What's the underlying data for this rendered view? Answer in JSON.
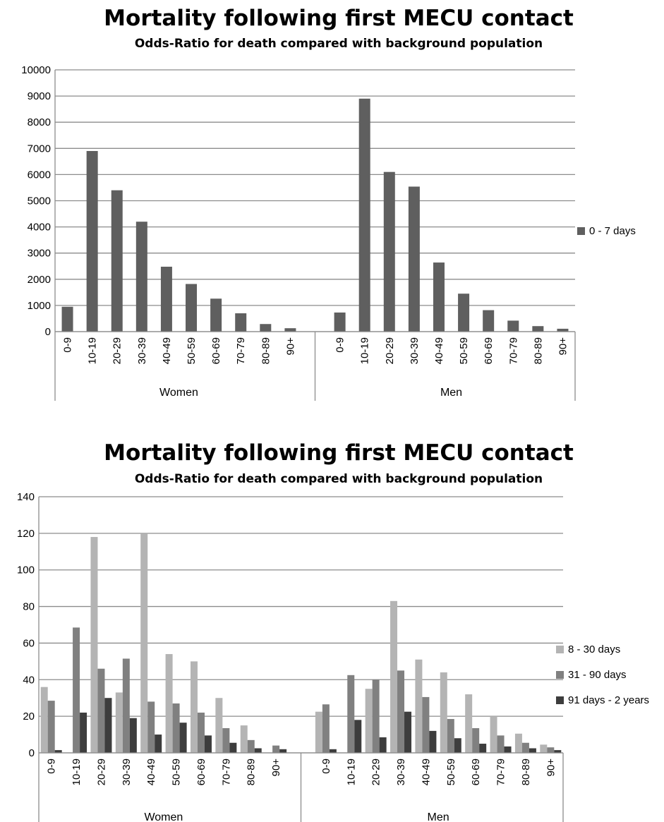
{
  "chart_data": [
    {
      "type": "bar",
      "title": "Mortality following first MECU contact",
      "subtitle": "Odds-Ratio for death compared with background population",
      "groups": [
        "Women",
        "Men"
      ],
      "categories": [
        "0-9",
        "10-19",
        "20-29",
        "30-39",
        "40-49",
        "50-59",
        "60-69",
        "70-79",
        "80-89",
        "90+"
      ],
      "ylim": [
        0,
        10000
      ],
      "yticks": [
        0,
        1000,
        2000,
        3000,
        4000,
        5000,
        6000,
        7000,
        8000,
        9000,
        10000
      ],
      "grid": true,
      "legend_position": "right",
      "series": [
        {
          "name": "0 - 7 days",
          "color": "#5f5f5f",
          "values": {
            "Women": [
              950,
              6900,
              5400,
              4200,
              2480,
              1820,
              1260,
              700,
              290,
              130
            ],
            "Men": [
              730,
              8900,
              6100,
              5540,
              2640,
              1450,
              820,
              420,
              210,
              110
            ]
          }
        }
      ]
    },
    {
      "type": "bar",
      "title": "Mortality following first MECU contact",
      "subtitle": "Odds-Ratio for death compared with background population",
      "groups": [
        "Women",
        "Men"
      ],
      "categories": [
        "0-9",
        "10-19",
        "20-29",
        "30-39",
        "40-49",
        "50-59",
        "60-69",
        "70-79",
        "80-89",
        "90+"
      ],
      "ylim": [
        0,
        140
      ],
      "yticks": [
        0,
        20,
        40,
        60,
        80,
        100,
        120,
        140
      ],
      "grid": true,
      "legend_position": "right",
      "series": [
        {
          "name": "8 - 30 days",
          "color": "#b4b4b4",
          "values": {
            "Women": [
              36,
              0,
              118,
              33,
              120,
              54,
              50,
              30,
              15,
              0
            ],
            "Men": [
              22.5,
              0,
              35,
              83,
              51,
              44,
              32,
              20,
              10.5,
              4.5
            ]
          }
        },
        {
          "name": "31 - 90 days",
          "color": "#808080",
          "values": {
            "Women": [
              28.5,
              68.5,
              46,
              51.5,
              28,
              27,
              22,
              13.5,
              7,
              4
            ],
            "Men": [
              26.5,
              42.5,
              40,
              45,
              30.5,
              18.5,
              13.5,
              9.5,
              5.5,
              3
            ]
          }
        },
        {
          "name": "91 days - 2 years",
          "color": "#3d3d3d",
          "values": {
            "Women": [
              1.5,
              22,
              30,
              19,
              10,
              16.5,
              9.5,
              5.5,
              2.5,
              2
            ],
            "Men": [
              2,
              18,
              8.5,
              22.5,
              12,
              8,
              5,
              3.5,
              2.5,
              1.5
            ]
          }
        }
      ]
    }
  ]
}
